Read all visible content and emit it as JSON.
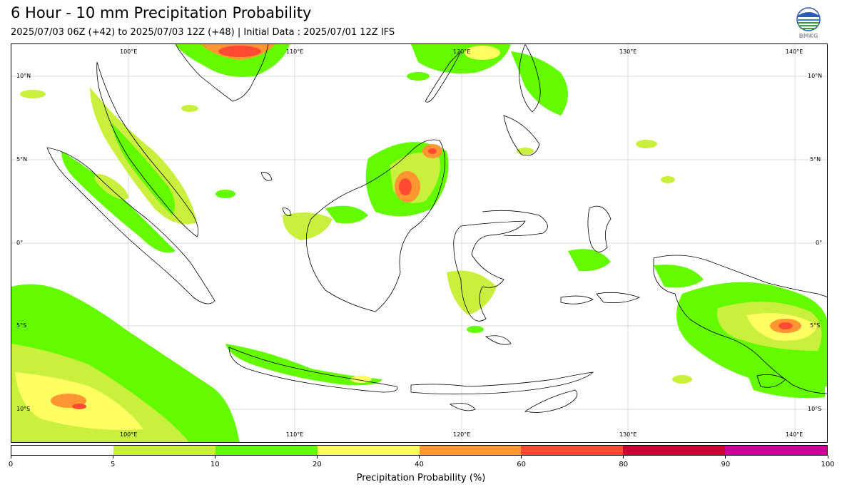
{
  "header": {
    "title": "6 Hour - 10 mm Precipitation Probability",
    "subtitle": "2025/07/03 06Z (+42) to 2025/07/03 12Z (+48) | Initial Data : 2025/07/01 12Z IFS",
    "logo_text": "BMKG"
  },
  "map": {
    "lon_labels_top": [
      "100°E",
      "110°E",
      "120°E",
      "130°E",
      "140°E"
    ],
    "lon_labels_bottom": [
      "100°E",
      "110°E",
      "120°E",
      "130°E",
      "140°E"
    ],
    "lat_labels_left": [
      "10°N",
      "5°N",
      "0°",
      "5°S",
      "10°S"
    ],
    "lat_labels_right": [
      "10°N",
      "5°N",
      "0°",
      "5°S",
      "10°S"
    ]
  },
  "colorbar": {
    "label": "Precipitation Probability (%)",
    "ticks": [
      "0",
      "5",
      "10",
      "20",
      "40",
      "60",
      "80",
      "90",
      "100"
    ],
    "colors": [
      "#ffffff",
      "#c8f03c",
      "#64fa00",
      "#ffff64",
      "#ff9632",
      "#ff4b32",
      "#c80032",
      "#c80096"
    ]
  }
}
